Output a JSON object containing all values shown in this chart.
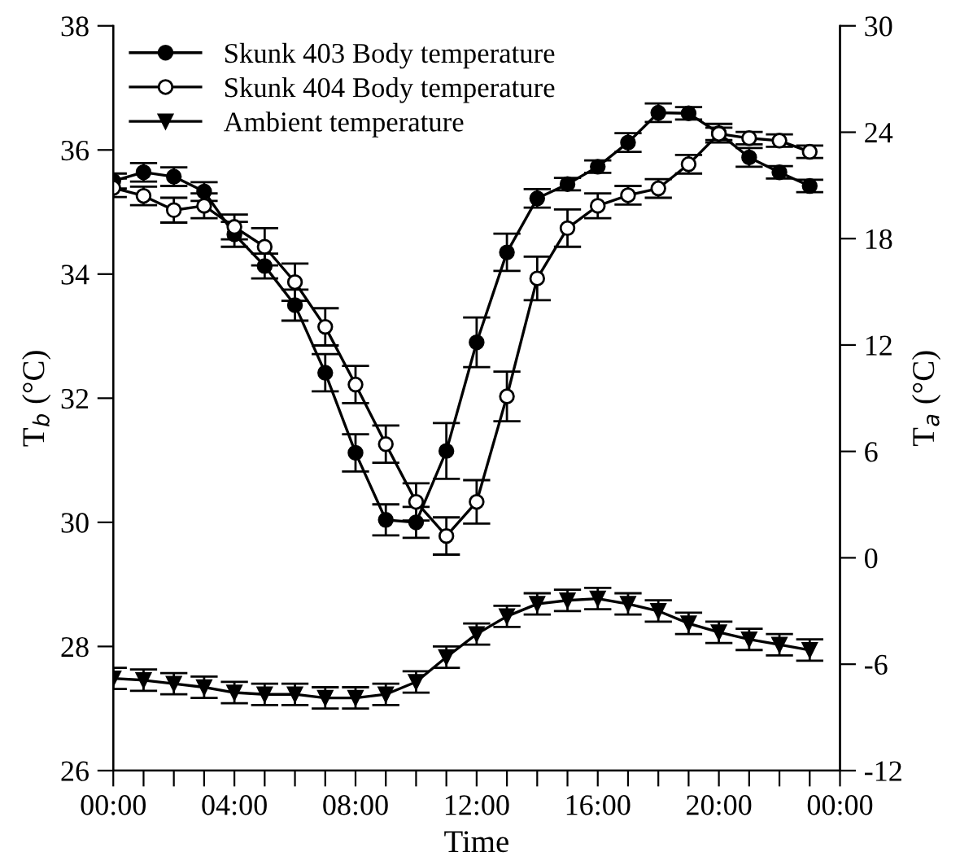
{
  "chart_data": {
    "type": "line",
    "xlabel": "Time",
    "ylabel": "T$_{b}$ (°C)",
    "y2label": "T$_{a}$ (°C)",
    "xlim": [
      0,
      24
    ],
    "xticks": [
      {
        "value": 0,
        "label": "00:00"
      },
      {
        "value": 1,
        "label": null
      },
      {
        "value": 2,
        "label": null
      },
      {
        "value": 3,
        "label": null
      },
      {
        "value": 4,
        "label": "04:00"
      },
      {
        "value": 5,
        "label": null
      },
      {
        "value": 6,
        "label": null
      },
      {
        "value": 7,
        "label": null
      },
      {
        "value": 8,
        "label": "08:00"
      },
      {
        "value": 9,
        "label": null
      },
      {
        "value": 10,
        "label": null
      },
      {
        "value": 11,
        "label": null
      },
      {
        "value": 12,
        "label": "12:00"
      },
      {
        "value": 13,
        "label": null
      },
      {
        "value": 14,
        "label": null
      },
      {
        "value": 15,
        "label": null
      },
      {
        "value": 16,
        "label": "16:00"
      },
      {
        "value": 17,
        "label": null
      },
      {
        "value": 18,
        "label": null
      },
      {
        "value": 19,
        "label": null
      },
      {
        "value": 20,
        "label": "20:00"
      },
      {
        "value": 21,
        "label": null
      },
      {
        "value": 22,
        "label": null
      },
      {
        "value": 23,
        "label": null
      },
      {
        "value": 24,
        "label": "00:00"
      }
    ],
    "ylim": [
      26,
      38
    ],
    "yticks": [
      26,
      28,
      30,
      32,
      34,
      36,
      38
    ],
    "y2lim": [
      -12,
      30
    ],
    "y2ticks": [
      -12,
      -6,
      0,
      6,
      12,
      18,
      24,
      30
    ],
    "x": [
      0,
      1,
      2,
      3,
      4,
      5,
      6,
      7,
      8,
      9,
      10,
      11,
      12,
      13,
      14,
      15,
      16,
      17,
      18,
      19,
      20,
      21,
      22,
      23
    ],
    "legend": "top left",
    "grid": false,
    "line_style": "solid",
    "series": [
      {
        "name": "Skunk 403 Body temperature",
        "color": "#000000",
        "marker": "circle",
        "values": [
          35.5,
          35.64,
          35.57,
          35.33,
          34.64,
          34.13,
          33.5,
          32.41,
          31.12,
          30.04,
          30.0,
          31.15,
          32.9,
          34.35,
          35.22,
          35.45,
          35.73,
          36.12,
          36.6,
          36.59,
          36.27,
          35.88,
          35.64,
          35.42
        ],
        "errors": [
          0.12,
          0.15,
          0.15,
          0.15,
          0.2,
          0.2,
          0.25,
          0.3,
          0.3,
          0.25,
          0.25,
          0.45,
          0.4,
          0.3,
          0.15,
          0.1,
          0.1,
          0.15,
          0.15,
          0.1,
          0.15,
          0.15,
          0.1,
          0.1
        ]
      },
      {
        "name": "Skunk 404 Body temperature",
        "color": "#000000",
        "marker": "circle",
        "values": [
          35.39,
          35.26,
          35.03,
          35.1,
          34.76,
          34.44,
          33.87,
          33.15,
          32.22,
          31.26,
          30.33,
          29.78,
          30.33,
          32.03,
          33.93,
          34.74,
          35.1,
          35.27,
          35.38,
          35.77,
          36.26,
          36.19,
          36.15,
          35.97
        ],
        "errors": [
          0.15,
          0.15,
          0.2,
          0.2,
          0.2,
          0.3,
          0.3,
          0.3,
          0.3,
          0.3,
          0.3,
          0.3,
          0.35,
          0.4,
          0.35,
          0.3,
          0.2,
          0.15,
          0.15,
          0.15,
          0.1,
          0.1,
          0.1,
          0.1
        ]
      },
      {
        "name": "Ambient temperature",
        "color": "#000000",
        "marker": "triangle",
        "axis": "y2",
        "values": [
          -6.8,
          -6.9,
          -7.1,
          -7.3,
          -7.6,
          -7.7,
          -7.7,
          -7.9,
          -7.9,
          -7.7,
          -7.0,
          -5.6,
          -4.3,
          -3.3,
          -2.6,
          -2.4,
          -2.3,
          -2.6,
          -3.0,
          -3.7,
          -4.2,
          -4.6,
          -4.9,
          -5.2
        ],
        "errors": [
          0.6,
          0.6,
          0.6,
          0.6,
          0.6,
          0.6,
          0.6,
          0.6,
          0.6,
          0.6,
          0.6,
          0.6,
          0.6,
          0.6,
          0.6,
          0.6,
          0.6,
          0.6,
          0.6,
          0.6,
          0.6,
          0.6,
          0.6,
          0.6
        ]
      }
    ]
  }
}
